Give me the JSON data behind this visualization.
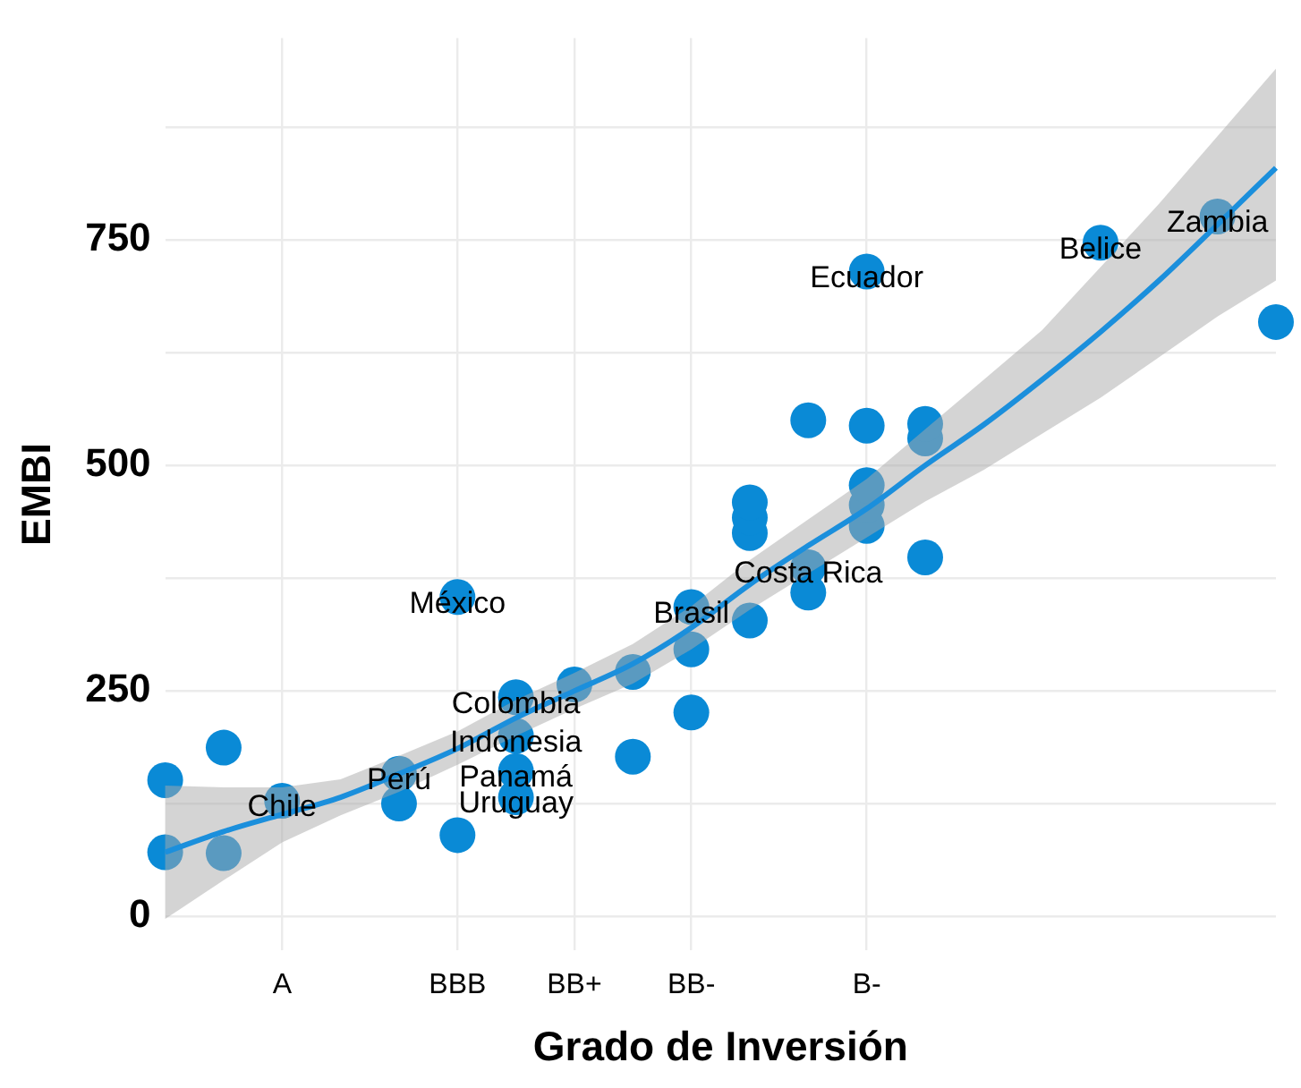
{
  "chart_data": {
    "type": "scatter",
    "xlabel": "Grado de Inversión",
    "ylabel": "EMBI",
    "categories": [
      null,
      null,
      "A",
      null,
      null,
      "BBB",
      null,
      "BB+",
      null,
      "BB-",
      null,
      null,
      "B-",
      null,
      null,
      null,
      null,
      null,
      null,
      null
    ],
    "ylim": [
      -38,
      974
    ],
    "yticks": [
      0,
      {
        "value": 125,
        "label": null
      },
      250,
      {
        "value": 375,
        "label": null
      },
      500,
      {
        "value": 625,
        "label": null
      },
      750,
      {
        "value": 875,
        "label": null
      }
    ],
    "grid": true,
    "legend": false,
    "marker": "circle",
    "series": [
      {
        "color": "#0a8ad6",
        "values": [
          151,
          187,
          128,
          null,
          158,
          354,
          243,
          257,
          271,
          343,
          459,
          550,
          715,
          546,
          null,
          null,
          747,
          null,
          776,
          659
        ],
        "value_labels": [
          null,
          null,
          "Chile",
          null,
          "Perú",
          "México",
          "Colombia",
          null,
          null,
          "Brasil",
          null,
          null,
          "Ecuador",
          null,
          null,
          null,
          "Belice",
          null,
          "Zambia",
          null
        ]
      },
      {
        "color": "#0a8ad6",
        "values": [
          71,
          70,
          null,
          null,
          125,
          90,
          200,
          null,
          177,
          296,
          442,
          387,
          544,
          530,
          null,
          null,
          null,
          null,
          null,
          null
        ],
        "value_labels": [
          null,
          null,
          null,
          null,
          null,
          null,
          "Indonesia",
          null,
          null,
          null,
          null,
          "Costa Rica",
          null,
          null,
          null,
          null,
          null,
          null,
          null,
          null
        ]
      },
      {
        "color": "#0a8ad6",
        "values": [
          null,
          null,
          null,
          null,
          null,
          null,
          161,
          null,
          null,
          226,
          425,
          359,
          478,
          398,
          null,
          null,
          null,
          null,
          null,
          null
        ],
        "value_labels": [
          null,
          null,
          null,
          null,
          null,
          null,
          "Panamá",
          null,
          null,
          null,
          null,
          null,
          null,
          null,
          null,
          null,
          null,
          null,
          null,
          null
        ]
      },
      {
        "color": "#0a8ad6",
        "values": [
          null,
          null,
          null,
          null,
          null,
          null,
          132,
          null,
          null,
          null,
          328,
          null,
          null,
          null,
          null,
          null,
          null,
          null,
          null,
          null
        ],
        "value_labels": [
          null,
          null,
          null,
          null,
          null,
          null,
          "Uruguay",
          null,
          null,
          null,
          null,
          null,
          null,
          null,
          null,
          null,
          null,
          null,
          null,
          null
        ]
      },
      {
        "color": "#0a8ad6",
        "values": [
          null,
          null,
          null,
          null,
          null,
          null,
          null,
          null,
          null,
          null,
          null,
          null,
          456,
          null,
          null,
          null,
          null,
          null,
          null,
          null
        ]
      },
      {
        "color": "#0a8ad6",
        "values": [
          null,
          null,
          null,
          null,
          null,
          null,
          null,
          null,
          null,
          null,
          null,
          null,
          433,
          null,
          null,
          null,
          null,
          null,
          null,
          null
        ]
      },
      {
        "type": "line",
        "marker": "none",
        "color": "#1b8fdc",
        "values": [
          71,
          94,
          113,
          132,
          158,
          186,
          220,
          250,
          280,
          320,
          368,
          411,
          452,
          500,
          545,
          595,
          648,
          705,
          767,
          830
        ],
        "lower": [
          -3,
          40,
          82,
          112,
          138,
          168,
          200,
          230,
          258,
          296,
          340,
          380,
          420,
          460,
          495,
          535,
          575,
          620,
          665,
          705
        ],
        "upper": [
          145,
          143,
          143,
          152,
          178,
          205,
          240,
          270,
          302,
          344,
          395,
          440,
          485,
          540,
          595,
          650,
          720,
          790,
          865,
          940
        ]
      }
    ]
  }
}
